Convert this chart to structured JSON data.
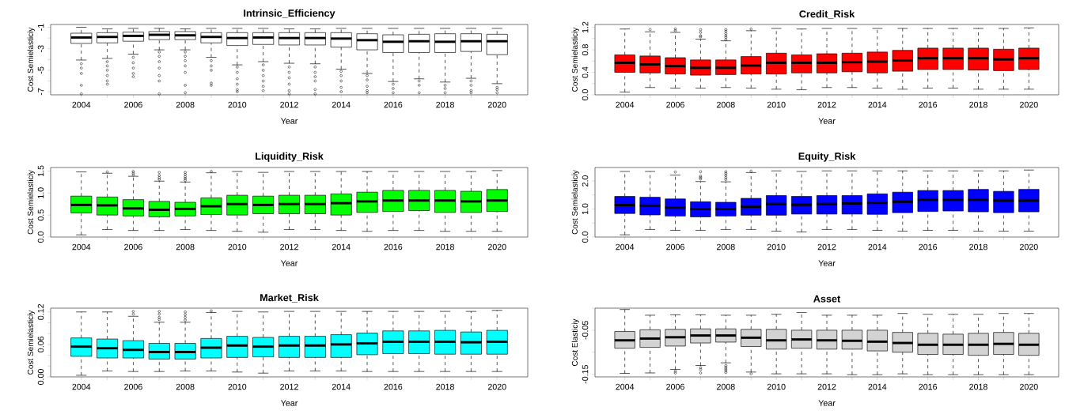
{
  "chart_data": [
    {
      "type": "box",
      "title": "Intrinsic_Efficiency",
      "xlabel": "Year",
      "ylabel": "Cost Semielasticiy",
      "color": "#ffffff",
      "categories": [
        "2004",
        null,
        "2006",
        null,
        "2008",
        null,
        "2010",
        null,
        "2012",
        null,
        "2014",
        null,
        "2016",
        null,
        "2018",
        null,
        "2020"
      ],
      "ylim": [
        -7.29,
        -0.74
      ],
      "yticks": [
        -7,
        {
          "value": -6,
          "label": null
        },
        -5,
        {
          "value": -4,
          "label": null
        },
        -3,
        {
          "value": -2,
          "label": null
        },
        -1
      ],
      "boxes": [
        {
          "low": -4.05,
          "q1": -2.5,
          "median": -1.95,
          "q3": -1.55,
          "high": -1.0,
          "outliers": [
            -4.4,
            -4.8,
            -5.3,
            -6.4,
            -7.2
          ]
        },
        {
          "low": -3.9,
          "q1": -2.45,
          "median": -1.9,
          "q3": -1.5,
          "high": -1.15,
          "outliers": [
            -4.2,
            -4.6,
            -5.0,
            -5.5,
            -6.0,
            -6.3
          ]
        },
        {
          "low": -3.5,
          "q1": -2.3,
          "median": -1.8,
          "q3": -1.45,
          "high": -1.1,
          "outliers": [
            -3.8,
            -4.3,
            -4.8,
            -5.3,
            -5.6
          ]
        },
        {
          "low": -3.1,
          "q1": -2.15,
          "median": -1.7,
          "q3": -1.4,
          "high": -1.1,
          "outliers": [
            -3.3,
            -3.7,
            -4.2,
            -4.8,
            -5.5,
            -6.0,
            -7.2
          ]
        },
        {
          "low": -3.1,
          "q1": -2.15,
          "median": -1.75,
          "q3": -1.4,
          "high": -1.15,
          "outliers": [
            -3.3,
            -3.7,
            -4.1,
            -4.6,
            -5.2,
            -6.4,
            -7.1
          ]
        },
        {
          "low": -3.8,
          "q1": -2.45,
          "median": -1.9,
          "q3": -1.5,
          "high": -1.1,
          "outliers": [
            -4.1,
            -4.6,
            -5.0,
            -6.2,
            -6.4
          ]
        },
        {
          "low": -4.5,
          "q1": -2.7,
          "median": -2.0,
          "q3": -1.5,
          "high": -1.1,
          "outliers": [
            -4.7,
            -5.2,
            -5.8,
            -6.3,
            -6.8,
            -7.0
          ]
        },
        {
          "low": -4.2,
          "q1": -2.6,
          "median": -1.95,
          "q3": -1.5,
          "high": -1.1,
          "outliers": [
            -4.5,
            -5.0,
            -5.5,
            -6.0,
            -6.5,
            -6.9
          ]
        },
        {
          "low": -4.35,
          "q1": -2.65,
          "median": -2.0,
          "q3": -1.5,
          "high": -1.15,
          "outliers": [
            -4.7,
            -5.2,
            -5.7,
            -6.3,
            -6.9,
            -7.2
          ]
        },
        {
          "low": -4.4,
          "q1": -2.65,
          "median": -2.0,
          "q3": -1.5,
          "high": -1.15,
          "outliers": [
            -4.7,
            -5.2,
            -5.6,
            -6.0,
            -6.8,
            -7.2
          ]
        },
        {
          "low": -4.9,
          "q1": -2.85,
          "median": -2.05,
          "q3": -1.5,
          "high": -1.1,
          "outliers": [
            -5.1,
            -5.5,
            -6.0,
            -6.6,
            -7.0
          ]
        },
        {
          "low": -5.3,
          "q1": -3.1,
          "median": -2.2,
          "q3": -1.6,
          "high": -1.1,
          "outliers": [
            -5.5,
            -5.9,
            -6.5,
            -6.9,
            -7.1
          ]
        },
        {
          "low": -6.05,
          "q1": -3.35,
          "median": -2.35,
          "q3": -1.7,
          "high": -1.1,
          "outliers": [
            -6.3,
            -6.7,
            -7.1
          ]
        },
        {
          "low": -5.8,
          "q1": -3.35,
          "median": -2.3,
          "q3": -1.65,
          "high": -1.1,
          "outliers": [
            -6.0,
            -6.4,
            -7.1
          ]
        },
        {
          "low": -6.1,
          "q1": -3.35,
          "median": -2.35,
          "q3": -1.6,
          "high": -1.1,
          "outliers": [
            -6.4,
            -6.7,
            -7.1
          ]
        },
        {
          "low": -5.75,
          "q1": -3.25,
          "median": -2.3,
          "q3": -1.6,
          "high": -1.1,
          "outliers": [
            -6.0,
            -6.4,
            -6.9,
            -7.1
          ]
        },
        {
          "low": -6.25,
          "q1": -3.55,
          "median": -2.3,
          "q3": -1.65,
          "high": -1.1,
          "outliers": [
            -6.6,
            -6.8,
            -7.1
          ]
        }
      ]
    },
    {
      "type": "box",
      "title": "Credit_Risk",
      "xlabel": "Year",
      "ylabel": "Cost Semielasticiy",
      "color": "#ff0000",
      "categories": [
        "2004",
        null,
        "2006",
        null,
        "2008",
        null,
        "2010",
        null,
        "2012",
        null,
        "2014",
        null,
        "2016",
        null,
        "2018",
        null,
        "2020"
      ],
      "ylim": [
        0.0,
        1.25
      ],
      "yticks": [
        {
          "value": 0,
          "label": "0.0"
        },
        {
          "value": 0.2,
          "label": null
        },
        {
          "value": 0.4,
          "label": "0.4"
        },
        {
          "value": 0.6,
          "label": null
        },
        {
          "value": 0.8,
          "label": "0.8"
        },
        {
          "value": 1.0,
          "label": null
        },
        {
          "value": 1.2,
          "label": "1.2"
        }
      ],
      "boxes": [
        {
          "low": 0.05,
          "q1": 0.4,
          "median": 0.57,
          "q3": 0.71,
          "high": 1.17
        },
        {
          "low": 0.13,
          "q1": 0.39,
          "median": 0.54,
          "q3": 0.69,
          "high": 1.12,
          "outliers": [
            1.16
          ]
        },
        {
          "low": 0.12,
          "q1": 0.37,
          "median": 0.51,
          "q3": 0.66,
          "high": 1.11,
          "outliers": [
            1.14,
            1.17
          ]
        },
        {
          "low": 0.12,
          "q1": 0.35,
          "median": 0.48,
          "q3": 0.62,
          "high": 0.99,
          "outliers": [
            1.03,
            1.05,
            1.11,
            1.16
          ]
        },
        {
          "low": 0.13,
          "q1": 0.36,
          "median": 0.48,
          "q3": 0.62,
          "high": 0.96,
          "outliers": [
            0.98,
            1.02,
            1.05,
            1.09,
            1.13,
            1.16
          ]
        },
        {
          "low": 0.12,
          "q1": 0.37,
          "median": 0.52,
          "q3": 0.68,
          "high": 1.14,
          "outliers": [
            1.17
          ]
        },
        {
          "low": 0.1,
          "q1": 0.37,
          "median": 0.57,
          "q3": 0.74,
          "high": 1.18
        },
        {
          "low": 0.09,
          "q1": 0.39,
          "median": 0.57,
          "q3": 0.71,
          "high": 1.17
        },
        {
          "low": 0.13,
          "q1": 0.39,
          "median": 0.57,
          "q3": 0.73,
          "high": 1.18
        },
        {
          "low": 0.13,
          "q1": 0.41,
          "median": 0.58,
          "q3": 0.74,
          "high": 1.18
        },
        {
          "low": 0.12,
          "q1": 0.39,
          "median": 0.59,
          "q3": 0.76,
          "high": 1.18
        },
        {
          "low": 0.1,
          "q1": 0.42,
          "median": 0.61,
          "q3": 0.79,
          "high": 1.18
        },
        {
          "low": 0.12,
          "q1": 0.45,
          "median": 0.65,
          "q3": 0.83,
          "high": 1.18
        },
        {
          "low": 0.12,
          "q1": 0.45,
          "median": 0.65,
          "q3": 0.83,
          "high": 1.18
        },
        {
          "low": 0.1,
          "q1": 0.44,
          "median": 0.65,
          "q3": 0.83,
          "high": 1.18
        },
        {
          "low": 0.1,
          "q1": 0.43,
          "median": 0.63,
          "q3": 0.81,
          "high": 1.18
        },
        {
          "low": 0.1,
          "q1": 0.45,
          "median": 0.65,
          "q3": 0.83,
          "high": 1.19
        }
      ]
    },
    {
      "type": "box",
      "title": "Liquidity_Risk",
      "xlabel": "Year",
      "ylabel": "Cost Semielasticiy",
      "color": "#00ff00",
      "categories": [
        "2004",
        null,
        "2006",
        null,
        "2008",
        null,
        "2010",
        null,
        "2012",
        null,
        "2014",
        null,
        "2016",
        null,
        "2018",
        null,
        "2020"
      ],
      "ylim": [
        0.0,
        1.58
      ],
      "yticks": [
        {
          "value": 0,
          "label": "0.0"
        },
        {
          "value": 0.5,
          "label": "0.5"
        },
        {
          "value": 1.0,
          "label": "1.0"
        },
        {
          "value": 1.5,
          "label": "1.5"
        }
      ],
      "boxes": [
        {
          "low": 0.05,
          "q1": 0.55,
          "median": 0.73,
          "q3": 0.93,
          "high": 1.48
        },
        {
          "low": 0.17,
          "q1": 0.5,
          "median": 0.72,
          "q3": 0.91,
          "high": 1.45,
          "outliers": [
            1.48
          ]
        },
        {
          "low": 0.15,
          "q1": 0.48,
          "median": 0.65,
          "q3": 0.85,
          "high": 1.38,
          "outliers": [
            1.41,
            1.45,
            1.49
          ]
        },
        {
          "low": 0.15,
          "q1": 0.46,
          "median": 0.62,
          "q3": 0.81,
          "high": 1.27,
          "outliers": [
            1.31,
            1.35,
            1.4,
            1.47
          ]
        },
        {
          "low": 0.17,
          "q1": 0.48,
          "median": 0.64,
          "q3": 0.79,
          "high": 1.25,
          "outliers": [
            1.29,
            1.33,
            1.37,
            1.42,
            1.47
          ]
        },
        {
          "low": 0.15,
          "q1": 0.51,
          "median": 0.7,
          "q3": 0.89,
          "high": 1.46,
          "outliers": [
            1.49
          ]
        },
        {
          "low": 0.13,
          "q1": 0.5,
          "median": 0.75,
          "q3": 0.95,
          "high": 1.49
        },
        {
          "low": 0.11,
          "q1": 0.53,
          "median": 0.73,
          "q3": 0.93,
          "high": 1.47
        },
        {
          "low": 0.17,
          "q1": 0.53,
          "median": 0.75,
          "q3": 0.95,
          "high": 1.49
        },
        {
          "low": 0.17,
          "q1": 0.53,
          "median": 0.75,
          "q3": 0.95,
          "high": 1.49
        },
        {
          "low": 0.15,
          "q1": 0.5,
          "median": 0.77,
          "q3": 0.98,
          "high": 1.49
        },
        {
          "low": 0.13,
          "q1": 0.56,
          "median": 0.81,
          "q3": 1.02,
          "high": 1.49
        },
        {
          "low": 0.15,
          "q1": 0.58,
          "median": 0.83,
          "q3": 1.06,
          "high": 1.49
        },
        {
          "low": 0.15,
          "q1": 0.6,
          "median": 0.83,
          "q3": 1.06,
          "high": 1.49
        },
        {
          "low": 0.13,
          "q1": 0.56,
          "median": 0.83,
          "q3": 1.06,
          "high": 1.49
        },
        {
          "low": 0.13,
          "q1": 0.56,
          "median": 0.81,
          "q3": 1.04,
          "high": 1.49
        },
        {
          "low": 0.13,
          "q1": 0.58,
          "median": 0.83,
          "q3": 1.08,
          "high": 1.51
        }
      ]
    },
    {
      "type": "box",
      "title": "Equity_Risk",
      "xlabel": "Year",
      "ylabel": "Cost Semielasticiy",
      "color": "#0000ff",
      "categories": [
        "2004",
        null,
        "2006",
        null,
        "2008",
        null,
        "2010",
        null,
        "2012",
        null,
        "2014",
        null,
        "2016",
        null,
        "2018",
        null,
        "2020"
      ],
      "ylim": [
        0.0,
        2.48
      ],
      "yticks": [
        {
          "value": 0,
          "label": "0.0"
        },
        {
          "value": 0.5,
          "label": null
        },
        {
          "value": 1.0,
          "label": "1.0"
        },
        {
          "value": 1.5,
          "label": null
        },
        {
          "value": 2.0,
          "label": "2.0"
        }
      ],
      "boxes": [
        {
          "low": 0.08,
          "q1": 0.84,
          "median": 1.14,
          "q3": 1.45,
          "high": 2.34
        },
        {
          "low": 0.27,
          "q1": 0.79,
          "median": 1.12,
          "q3": 1.42,
          "high": 2.34
        },
        {
          "low": 0.24,
          "q1": 0.75,
          "median": 1.05,
          "q3": 1.36,
          "high": 2.21,
          "outliers": [
            2.32
          ]
        },
        {
          "low": 0.24,
          "q1": 0.72,
          "median": 1.0,
          "q3": 1.26,
          "high": 1.98,
          "outliers": [
            2.07,
            2.12,
            2.17,
            2.33
          ]
        },
        {
          "low": 0.27,
          "q1": 0.75,
          "median": 1.0,
          "q3": 1.24,
          "high": 1.97,
          "outliers": [
            2.05,
            2.12,
            2.2,
            2.27,
            2.33
          ]
        },
        {
          "low": 0.27,
          "q1": 0.78,
          "median": 1.08,
          "q3": 1.38,
          "high": 2.3,
          "outliers": [
            2.35
          ]
        },
        {
          "low": 0.21,
          "q1": 0.78,
          "median": 1.18,
          "q3": 1.48,
          "high": 2.36
        },
        {
          "low": 0.18,
          "q1": 0.82,
          "median": 1.15,
          "q3": 1.45,
          "high": 2.34
        },
        {
          "low": 0.27,
          "q1": 0.82,
          "median": 1.18,
          "q3": 1.48,
          "high": 2.36
        },
        {
          "low": 0.27,
          "q1": 0.82,
          "median": 1.2,
          "q3": 1.48,
          "high": 2.36
        },
        {
          "low": 0.24,
          "q1": 0.81,
          "median": 1.22,
          "q3": 1.54,
          "high": 2.36
        },
        {
          "low": 0.21,
          "q1": 0.87,
          "median": 1.26,
          "q3": 1.6,
          "high": 2.36
        },
        {
          "low": 0.24,
          "q1": 0.91,
          "median": 1.33,
          "q3": 1.66,
          "high": 2.36
        },
        {
          "low": 0.24,
          "q1": 0.93,
          "median": 1.33,
          "q3": 1.66,
          "high": 2.36
        },
        {
          "low": 0.21,
          "q1": 0.9,
          "median": 1.33,
          "q3": 1.7,
          "high": 2.36
        },
        {
          "low": 0.21,
          "q1": 0.87,
          "median": 1.3,
          "q3": 1.63,
          "high": 2.36
        },
        {
          "low": 0.21,
          "q1": 0.9,
          "median": 1.3,
          "q3": 1.7,
          "high": 2.39
        }
      ]
    },
    {
      "type": "box",
      "title": "Market_Risk",
      "xlabel": "Year",
      "ylabel": "Cost Semielasticiy",
      "color": "#00ffff",
      "categories": [
        "2004",
        null,
        "2006",
        null,
        "2008",
        null,
        "2010",
        null,
        "2012",
        null,
        "2014",
        null,
        "2016",
        null,
        "2018",
        null,
        "2020"
      ],
      "ylim": [
        0.0,
        0.127
      ],
      "yticks": [
        {
          "value": 0,
          "label": "0.00"
        },
        {
          "value": 0.02,
          "label": null
        },
        {
          "value": 0.04,
          "label": null
        },
        {
          "value": 0.06,
          "label": "0.06"
        },
        {
          "value": 0.08,
          "label": null
        },
        {
          "value": 0.1,
          "label": null
        },
        {
          "value": 0.12,
          "label": "0.12"
        }
      ],
      "boxes": [
        {
          "low": 0.003,
          "q1": 0.038,
          "median": 0.056,
          "q3": 0.072,
          "high": 0.12
        },
        {
          "low": 0.011,
          "q1": 0.035,
          "median": 0.053,
          "q3": 0.07,
          "high": 0.12
        },
        {
          "low": 0.01,
          "q1": 0.035,
          "median": 0.05,
          "q3": 0.067,
          "high": 0.112,
          "outliers": [
            0.116,
            0.121
          ]
        },
        {
          "low": 0.01,
          "q1": 0.033,
          "median": 0.046,
          "q3": 0.062,
          "high": 0.101,
          "outliers": [
            0.106,
            0.11,
            0.116,
            0.121
          ]
        },
        {
          "low": 0.011,
          "q1": 0.033,
          "median": 0.046,
          "q3": 0.062,
          "high": 0.101,
          "outliers": [
            0.105,
            0.11,
            0.115,
            0.12
          ]
        },
        {
          "low": 0.011,
          "q1": 0.035,
          "median": 0.054,
          "q3": 0.071,
          "high": 0.119,
          "outliers": [
            0.122
          ]
        },
        {
          "low": 0.009,
          "q1": 0.036,
          "median": 0.058,
          "q3": 0.075,
          "high": 0.121
        },
        {
          "low": 0.007,
          "q1": 0.037,
          "median": 0.056,
          "q3": 0.073,
          "high": 0.12
        },
        {
          "low": 0.011,
          "q1": 0.036,
          "median": 0.058,
          "q3": 0.075,
          "high": 0.121
        },
        {
          "low": 0.011,
          "q1": 0.036,
          "median": 0.058,
          "q3": 0.075,
          "high": 0.121
        },
        {
          "low": 0.011,
          "q1": 0.036,
          "median": 0.06,
          "q3": 0.078,
          "high": 0.121
        },
        {
          "low": 0.01,
          "q1": 0.041,
          "median": 0.062,
          "q3": 0.081,
          "high": 0.121
        },
        {
          "low": 0.01,
          "q1": 0.043,
          "median": 0.065,
          "q3": 0.085,
          "high": 0.121
        },
        {
          "low": 0.01,
          "q1": 0.043,
          "median": 0.065,
          "q3": 0.085,
          "high": 0.121
        },
        {
          "low": 0.01,
          "q1": 0.042,
          "median": 0.065,
          "q3": 0.086,
          "high": 0.121
        },
        {
          "low": 0.01,
          "q1": 0.042,
          "median": 0.064,
          "q3": 0.083,
          "high": 0.121
        },
        {
          "low": 0.01,
          "q1": 0.042,
          "median": 0.065,
          "q3": 0.086,
          "high": 0.123
        }
      ]
    },
    {
      "type": "box",
      "title": "Asset",
      "xlabel": "Year",
      "ylabel": "Cost Elasticiy",
      "color": "#d3d3d3",
      "categories": [
        "2004",
        null,
        "2006",
        null,
        "2008",
        null,
        "2010",
        null,
        "2012",
        null,
        "2014",
        null,
        "2016",
        null,
        "2018",
        null,
        "2020"
      ],
      "ylim": [
        -0.156,
        0.0
      ],
      "yticks": [
        {
          "value": -0.15,
          "label": "-0.15"
        },
        {
          "value": -0.1,
          "label": null
        },
        {
          "value": -0.05,
          "label": "-0.05"
        },
        {
          "value": 0.0,
          "label": null
        }
      ],
      "boxes": [
        {
          "low": -0.148,
          "q1": -0.091,
          "median": -0.073,
          "q3": -0.053,
          "high": -0.003
        },
        {
          "low": -0.147,
          "q1": -0.089,
          "median": -0.069,
          "q3": -0.049,
          "high": -0.016
        },
        {
          "low": -0.139,
          "q1": -0.086,
          "median": -0.066,
          "q3": -0.048,
          "high": -0.015,
          "outliers": [
            -0.143,
            -0.147
          ]
        },
        {
          "low": -0.13,
          "q1": -0.079,
          "median": -0.062,
          "q3": -0.047,
          "high": -0.015,
          "outliers": [
            -0.135,
            -0.139,
            -0.147
          ]
        },
        {
          "low": -0.124,
          "q1": -0.077,
          "median": -0.062,
          "q3": -0.047,
          "high": -0.016,
          "outliers": [
            -0.13,
            -0.134,
            -0.138,
            -0.142,
            -0.146
          ]
        },
        {
          "low": -0.145,
          "q1": -0.087,
          "median": -0.067,
          "q3": -0.048,
          "high": -0.016,
          "outliers": [
            -0.149
          ]
        },
        {
          "low": -0.149,
          "q1": -0.093,
          "median": -0.073,
          "q3": -0.048,
          "high": -0.014
        },
        {
          "low": -0.149,
          "q1": -0.091,
          "median": -0.071,
          "q3": -0.05,
          "high": -0.01
        },
        {
          "low": -0.149,
          "q1": -0.093,
          "median": -0.073,
          "q3": -0.05,
          "high": -0.016
        },
        {
          "low": -0.151,
          "q1": -0.093,
          "median": -0.074,
          "q3": -0.05,
          "high": -0.016
        },
        {
          "low": -0.151,
          "q1": -0.097,
          "median": -0.076,
          "q3": -0.05,
          "high": -0.016
        },
        {
          "low": -0.149,
          "q1": -0.1,
          "median": -0.079,
          "q3": -0.055,
          "high": -0.012
        },
        {
          "low": -0.151,
          "q1": -0.105,
          "median": -0.083,
          "q3": -0.057,
          "high": -0.014
        },
        {
          "low": -0.151,
          "q1": -0.105,
          "median": -0.083,
          "q3": -0.059,
          "high": -0.014
        },
        {
          "low": -0.151,
          "q1": -0.107,
          "median": -0.083,
          "q3": -0.057,
          "high": -0.014
        },
        {
          "low": -0.151,
          "q1": -0.105,
          "median": -0.081,
          "q3": -0.055,
          "high": -0.012
        },
        {
          "low": -0.151,
          "q1": -0.107,
          "median": -0.083,
          "q3": -0.057,
          "high": -0.012
        }
      ]
    }
  ]
}
